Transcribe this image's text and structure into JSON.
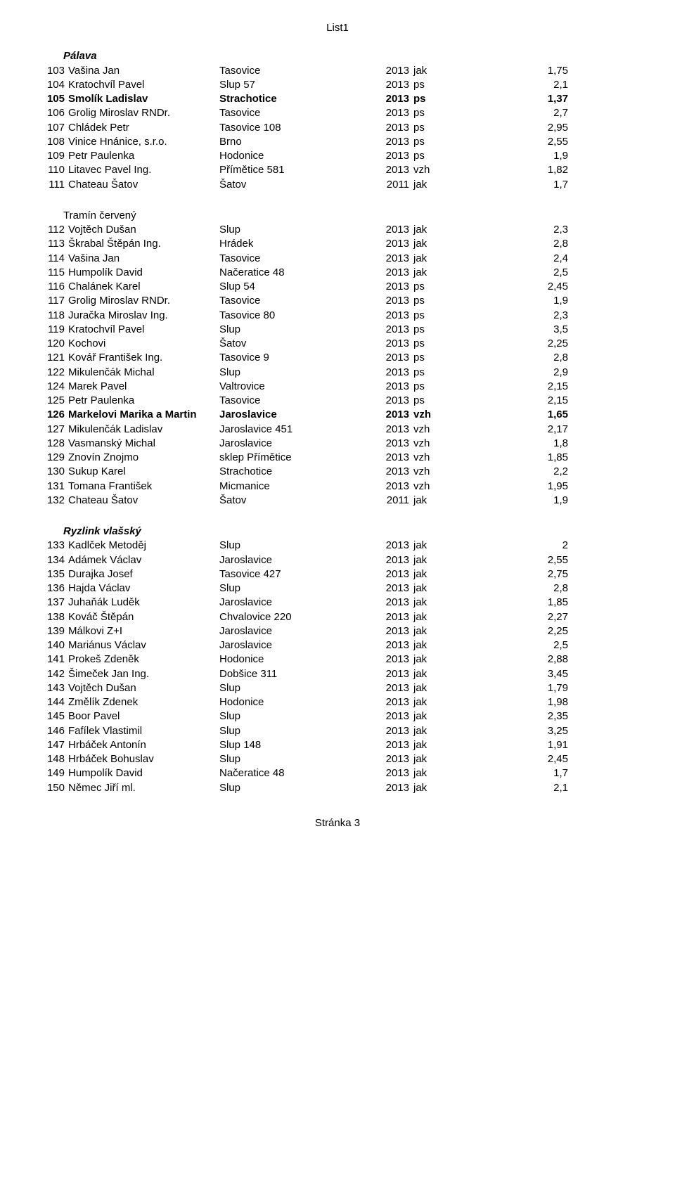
{
  "doc_title": "List1",
  "footer": "Stránka 3",
  "sections": [
    {
      "title": "Pálava",
      "rows": [
        {
          "n": "103",
          "name": "Vašina Jan",
          "loc": "Tasovice",
          "year": "2013",
          "type": "jak",
          "score": "1,75",
          "bold": false
        },
        {
          "n": "104",
          "name": "Kratochvíl Pavel",
          "loc": "Slup 57",
          "year": "2013",
          "type": "ps",
          "score": "2,1",
          "bold": false
        },
        {
          "n": "105",
          "name": "Smolík Ladislav",
          "loc": "Strachotice",
          "year": "2013",
          "type": "ps",
          "score": "1,37",
          "bold": true
        },
        {
          "n": "106",
          "name": "Grolig Miroslav RNDr.",
          "loc": "Tasovice",
          "year": "2013",
          "type": "ps",
          "score": "2,7",
          "bold": false
        },
        {
          "n": "107",
          "name": "Chládek Petr",
          "loc": "Tasovice 108",
          "year": "2013",
          "type": "ps",
          "score": "2,95",
          "bold": false
        },
        {
          "n": "108",
          "name": "Vinice Hnánice, s.r.o.",
          "loc": "Brno",
          "year": "2013",
          "type": "ps",
          "score": "2,55",
          "bold": false
        },
        {
          "n": "109",
          "name": "Petr Paulenka",
          "loc": "Hodonice",
          "year": "2013",
          "type": "ps",
          "score": "1,9",
          "bold": false
        },
        {
          "n": "110",
          "name": "Litavec Pavel Ing.",
          "loc": "Přímětice 581",
          "year": "2013",
          "type": "vzh",
          "score": "1,82",
          "bold": false
        },
        {
          "n": "111",
          "name": "Chateau Šatov",
          "loc": "Šatov",
          "year": "2011",
          "type": "jak",
          "score": "1,7",
          "bold": false
        }
      ]
    },
    {
      "title": "Tramín červený",
      "rows": [
        {
          "n": "112",
          "name": "Vojtěch Dušan",
          "loc": "Slup",
          "year": "2013",
          "type": "jak",
          "score": "2,3",
          "bold": false
        },
        {
          "n": "113",
          "name": "Škrabal Štěpán Ing.",
          "loc": "Hrádek",
          "year": "2013",
          "type": "jak",
          "score": "2,8",
          "bold": false
        },
        {
          "n": "114",
          "name": "Vašina Jan",
          "loc": "Tasovice",
          "year": "2013",
          "type": "jak",
          "score": "2,4",
          "bold": false
        },
        {
          "n": "115",
          "name": "Humpolík David",
          "loc": "Načeratice 48",
          "year": "2013",
          "type": "jak",
          "score": "2,5",
          "bold": false
        },
        {
          "n": "116",
          "name": "Chalánek Karel",
          "loc": "Slup 54",
          "year": "2013",
          "type": "ps",
          "score": "2,45",
          "bold": false
        },
        {
          "n": "117",
          "name": "Grolig Miroslav RNDr.",
          "loc": "Tasovice",
          "year": "2013",
          "type": "ps",
          "score": "1,9",
          "bold": false
        },
        {
          "n": "118",
          "name": "Juračka Miroslav Ing.",
          "loc": "Tasovice 80",
          "year": "2013",
          "type": "ps",
          "score": "2,3",
          "bold": false
        },
        {
          "n": "119",
          "name": "Kratochvíl Pavel",
          "loc": "Slup",
          "year": "2013",
          "type": "ps",
          "score": "3,5",
          "bold": false
        },
        {
          "n": "120",
          "name": "Kochovi",
          "loc": "Šatov",
          "year": "2013",
          "type": "ps",
          "score": "2,25",
          "bold": false
        },
        {
          "n": "121",
          "name": "Kovář František Ing.",
          "loc": "Tasovice 9",
          "year": "2013",
          "type": "ps",
          "score": "2,8",
          "bold": false
        },
        {
          "n": "122",
          "name": "Mikulenčák Michal",
          "loc": "Slup",
          "year": "2013",
          "type": "ps",
          "score": "2,9",
          "bold": false
        },
        {
          "n": "124",
          "name": "Marek Pavel",
          "loc": "Valtrovice",
          "year": "2013",
          "type": "ps",
          "score": "2,15",
          "bold": false
        },
        {
          "n": "125",
          "name": "Petr Paulenka",
          "loc": "Tasovice",
          "year": "2013",
          "type": "ps",
          "score": "2,15",
          "bold": false
        },
        {
          "n": "126",
          "name": "Markelovi Marika a Martin",
          "loc": "Jaroslavice",
          "year": "2013",
          "type": "vzh",
          "score": "1,65",
          "bold": true
        },
        {
          "n": "127",
          "name": "Mikulenčák Ladislav",
          "loc": "Jaroslavice 451",
          "year": "2013",
          "type": "vzh",
          "score": "2,17",
          "bold": false
        },
        {
          "n": "128",
          "name": "Vasmanský Michal",
          "loc": "Jaroslavice",
          "year": "2013",
          "type": "vzh",
          "score": "1,8",
          "bold": false
        },
        {
          "n": "129",
          "name": "Znovín Znojmo",
          "loc": "sklep Přímětice",
          "year": "2013",
          "type": "vzh",
          "score": "1,85",
          "bold": false
        },
        {
          "n": "130",
          "name": "Sukup Karel",
          "loc": "Strachotice",
          "year": "2013",
          "type": "vzh",
          "score": "2,2",
          "bold": false
        },
        {
          "n": "131",
          "name": "Tomana František",
          "loc": "Micmanice",
          "year": "2013",
          "type": "vzh",
          "score": "1,95",
          "bold": false
        },
        {
          "n": "132",
          "name": "Chateau Šatov",
          "loc": "Šatov",
          "year": "2011",
          "type": "jak",
          "score": "1,9",
          "bold": false
        }
      ]
    },
    {
      "title": "Ryzlink vlašský",
      "rows": [
        {
          "n": "133",
          "name": "Kadlček Metoděj",
          "loc": "Slup",
          "year": "2013",
          "type": "jak",
          "score": "2",
          "bold": false
        },
        {
          "n": "134",
          "name": "Adámek Václav",
          "loc": "Jaroslavice",
          "year": "2013",
          "type": "jak",
          "score": "2,55",
          "bold": false
        },
        {
          "n": "135",
          "name": "Durajka Josef",
          "loc": "Tasovice 427",
          "year": "2013",
          "type": "jak",
          "score": "2,75",
          "bold": false
        },
        {
          "n": "136",
          "name": "Hajda Václav",
          "loc": "Slup",
          "year": "2013",
          "type": "jak",
          "score": "2,8",
          "bold": false
        },
        {
          "n": "137",
          "name": "Juhaňák Luděk",
          "loc": "Jaroslavice",
          "year": "2013",
          "type": "jak",
          "score": "1,85",
          "bold": false
        },
        {
          "n": "138",
          "name": "Kováč Štěpán",
          "loc": "Chvalovice 220",
          "year": "2013",
          "type": "jak",
          "score": "2,27",
          "bold": false
        },
        {
          "n": "139",
          "name": "Málkovi Z+I",
          "loc": "Jaroslavice",
          "year": "2013",
          "type": "jak",
          "score": "2,25",
          "bold": false
        },
        {
          "n": "140",
          "name": "Mariánus Václav",
          "loc": "Jaroslavice",
          "year": "2013",
          "type": "jak",
          "score": "2,5",
          "bold": false
        },
        {
          "n": "141",
          "name": "Prokeš Zdeněk",
          "loc": "Hodonice",
          "year": "2013",
          "type": "jak",
          "score": "2,88",
          "bold": false
        },
        {
          "n": "142",
          "name": "Šimeček Jan Ing.",
          "loc": "Dobšice 311",
          "year": "2013",
          "type": "jak",
          "score": "3,45",
          "bold": false
        },
        {
          "n": "143",
          "name": "Vojtěch Dušan",
          "loc": "Slup",
          "year": "2013",
          "type": "jak",
          "score": "1,79",
          "bold": false
        },
        {
          "n": "144",
          "name": "Změlík Zdenek",
          "loc": "Hodonice",
          "year": "2013",
          "type": "jak",
          "score": "1,98",
          "bold": false
        },
        {
          "n": "145",
          "name": "Boor Pavel",
          "loc": "Slup",
          "year": "2013",
          "type": "jak",
          "score": "2,35",
          "bold": false
        },
        {
          "n": "146",
          "name": "Fafílek Vlastimil",
          "loc": "Slup",
          "year": "2013",
          "type": "jak",
          "score": "3,25",
          "bold": false
        },
        {
          "n": "147",
          "name": "Hrbáček Antonín",
          "loc": "Slup 148",
          "year": "2013",
          "type": "jak",
          "score": "1,91",
          "bold": false
        },
        {
          "n": "148",
          "name": "Hrbáček Bohuslav",
          "loc": "Slup",
          "year": "2013",
          "type": "jak",
          "score": "2,45",
          "bold": false
        },
        {
          "n": "149",
          "name": "Humpolík David",
          "loc": "Načeratice 48",
          "year": "2013",
          "type": "jak",
          "score": "1,7",
          "bold": false
        },
        {
          "n": "150",
          "name": "Němec Jiří ml.",
          "loc": "Slup",
          "year": "2013",
          "type": "jak",
          "score": "2,1",
          "bold": false
        }
      ]
    }
  ]
}
